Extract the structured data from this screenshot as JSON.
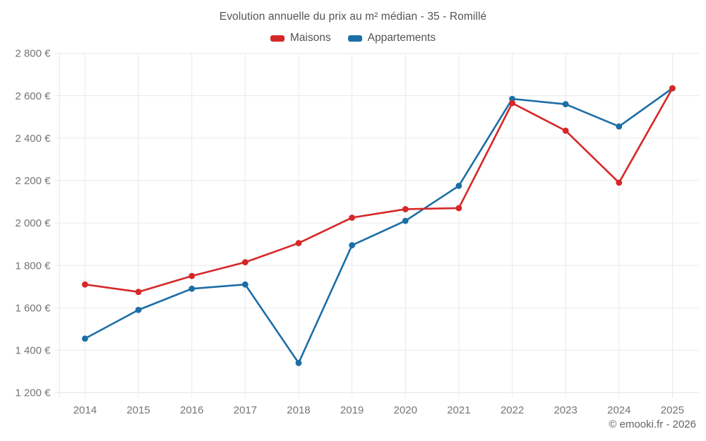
{
  "chart_data": {
    "type": "line",
    "title": "Evolution annuelle du prix au m² médian - 35 - Romillé",
    "categories": [
      "2014",
      "2015",
      "2016",
      "2017",
      "2018",
      "2019",
      "2020",
      "2021",
      "2022",
      "2023",
      "2024",
      "2025"
    ],
    "series": [
      {
        "name": "Maisons",
        "color": "#d62728",
        "values": [
          1710,
          1675,
          1750,
          1815,
          1905,
          2025,
          2065,
          2070,
          2565,
          2435,
          2190,
          2635
        ]
      },
      {
        "name": "Appartements",
        "color": "#1c6ea6",
        "values": [
          1455,
          1590,
          1690,
          1710,
          1340,
          1895,
          2010,
          2175,
          2585,
          2560,
          2455,
          2635
        ]
      }
    ],
    "ylabel_format": "euros_per_m2",
    "ylim": [
      1200,
      2800
    ],
    "ytick_step": 200,
    "ytick_labels": [
      "1 200 €",
      "1 400 €",
      "1 600 €",
      "1 800 €",
      "2 000 €",
      "2 200 €",
      "2 400 €",
      "2 600 €",
      "2 800 €"
    ],
    "grid": true,
    "legend_position": "top",
    "attribution": "© emooki.fr - 2026",
    "colors": {
      "grid": "#e9e9e9",
      "tick_text": "#757578",
      "title_text": "#545456",
      "attribution_text": "#636366",
      "background": "#ffffff"
    }
  }
}
